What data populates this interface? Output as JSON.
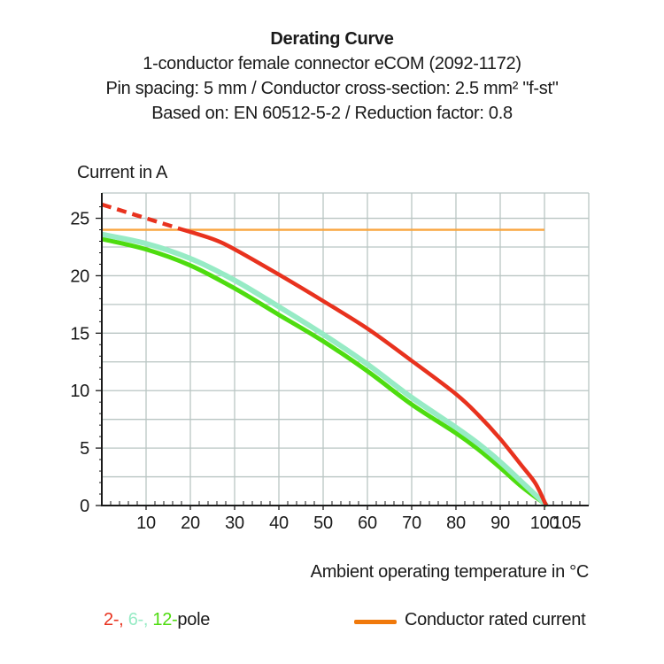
{
  "header": {
    "title": "Derating Curve",
    "subtitle_lines": [
      "1-conductor female connector eCOM (2092-1172)",
      "Pin spacing: 5 mm / Conductor cross-section: 2.5 mm² \"f-st\"",
      "Based on: EN 60512-5-2 / Reduction factor: 0.8"
    ]
  },
  "chart_data": {
    "type": "line",
    "title": "Derating Curve",
    "y_axis_label": "Current in A",
    "x_axis_label": "Ambient operating temperature in °C",
    "xlim": [
      0,
      110
    ],
    "ylim": [
      0,
      27.2
    ],
    "x_ticks": [
      10,
      20,
      30,
      40,
      50,
      60,
      70,
      80,
      90,
      100,
      105
    ],
    "y_ticks": [
      0,
      5,
      10,
      15,
      20,
      25
    ],
    "grid": {
      "x_step": 10,
      "y_step": 2.5,
      "x_minor_step": 2,
      "y_minor_step": 1
    },
    "colors": {
      "grid": "#b9c5c3",
      "axis": "#1a1a1a",
      "tick_text": "#1a1a1a"
    },
    "series": [
      {
        "name": "Conductor rated current",
        "color": "#f9a53f",
        "width": 2.4,
        "segments": [
          {
            "dashed": false,
            "points": [
              [
                0,
                24
              ],
              [
                100,
                24
              ]
            ]
          }
        ]
      },
      {
        "name": "12-pole",
        "color": "#4edc0f",
        "width": 5,
        "segments": [
          {
            "dashed": false,
            "points": [
              [
                0,
                23.2
              ],
              [
                10,
                22.3
              ],
              [
                20,
                20.9
              ],
              [
                30,
                18.9
              ],
              [
                40,
                16.6
              ],
              [
                50,
                14.3
              ],
              [
                60,
                11.7
              ],
              [
                70,
                8.8
              ],
              [
                80,
                6.3
              ],
              [
                85,
                4.9
              ],
              [
                90,
                3.3
              ],
              [
                95,
                1.6
              ],
              [
                100.6,
                0
              ]
            ]
          }
        ]
      },
      {
        "name": "6-pole",
        "color": "#97ebc5",
        "width": 6,
        "segments": [
          {
            "dashed": false,
            "points": [
              [
                0,
                23.6
              ],
              [
                10,
                22.8
              ],
              [
                20,
                21.5
              ],
              [
                30,
                19.6
              ],
              [
                40,
                17.3
              ],
              [
                50,
                14.9
              ],
              [
                60,
                12.3
              ],
              [
                70,
                9.4
              ],
              [
                80,
                6.8
              ],
              [
                85,
                5.4
              ],
              [
                90,
                3.8
              ],
              [
                95,
                2.0
              ],
              [
                100.5,
                0
              ]
            ]
          }
        ]
      },
      {
        "name": "2-pole",
        "color": "#e8321e",
        "width": 4.5,
        "segments": [
          {
            "dashed": true,
            "points": [
              [
                0,
                26.2
              ],
              [
                17.5,
                24.1
              ]
            ]
          },
          {
            "dashed": false,
            "points": [
              [
                17.5,
                24.1
              ],
              [
                25,
                23.2
              ],
              [
                30,
                22.3
              ],
              [
                40,
                20.1
              ],
              [
                50,
                17.8
              ],
              [
                60,
                15.4
              ],
              [
                70,
                12.6
              ],
              [
                80,
                9.7
              ],
              [
                85,
                7.9
              ],
              [
                90,
                5.8
              ],
              [
                95,
                3.4
              ],
              [
                98,
                1.9
              ],
              [
                100.4,
                0
              ]
            ]
          }
        ]
      }
    ]
  },
  "legend": {
    "poles": [
      {
        "text": "2-,",
        "color": "#e8321e"
      },
      {
        "text": "6-,",
        "color": "#97ebc5"
      },
      {
        "text": "12-",
        "color": "#4edc0f"
      },
      {
        "text": "pole",
        "color": "#1a1a1a"
      }
    ],
    "rated": {
      "label": "Conductor rated current",
      "swatch_color": "#f0790b"
    }
  }
}
